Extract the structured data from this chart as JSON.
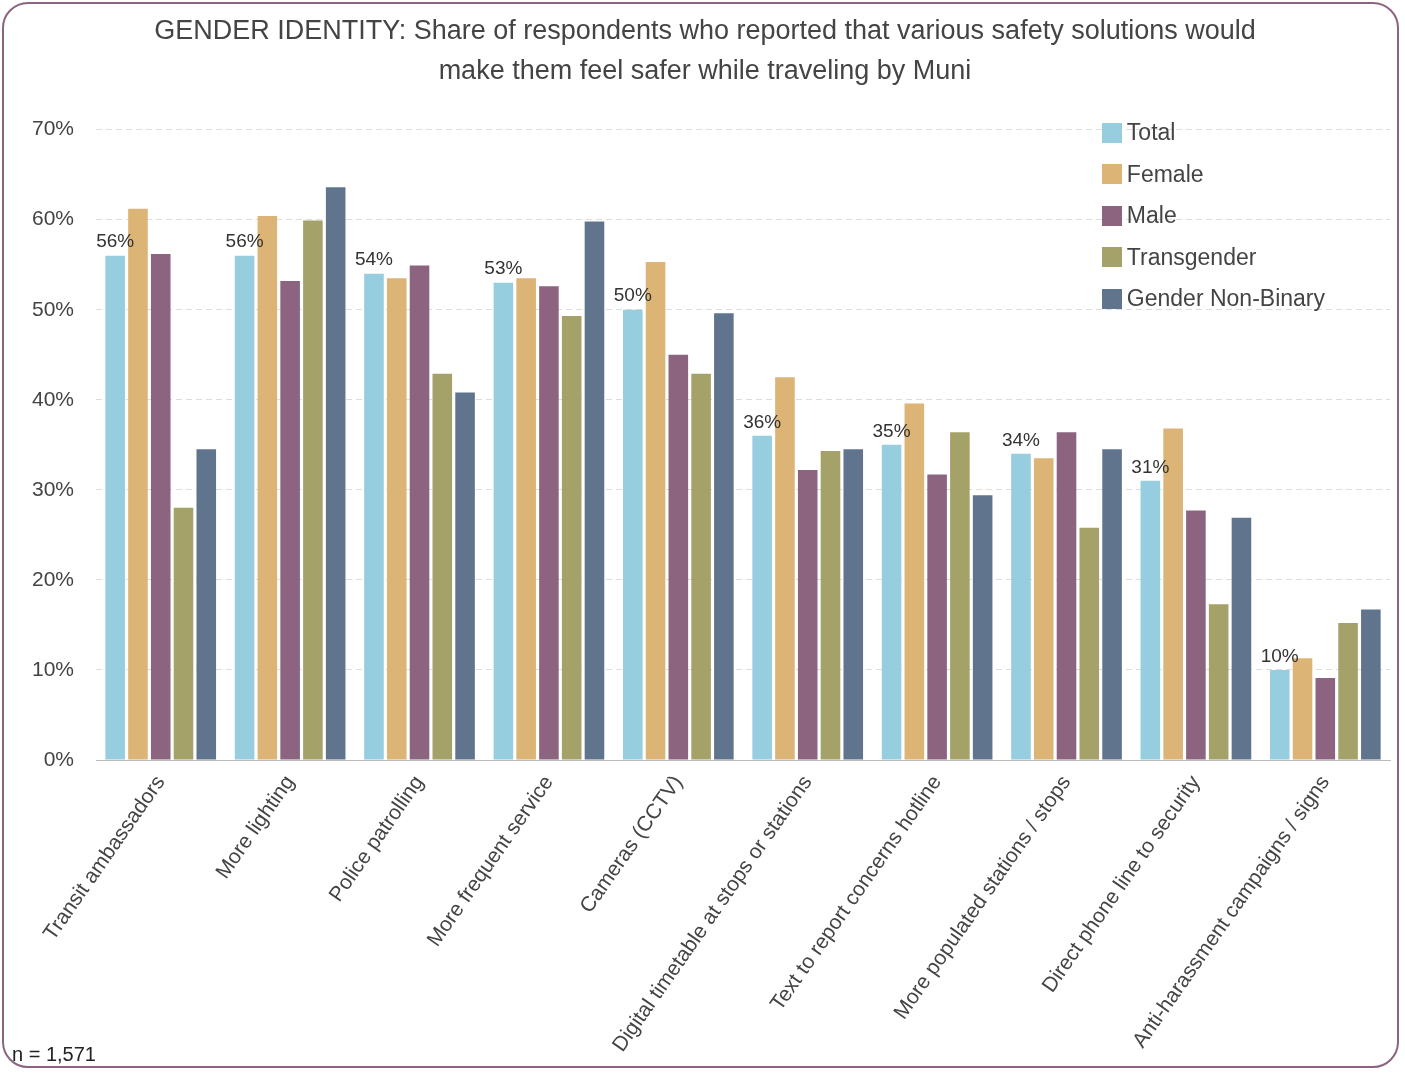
{
  "chart_data": {
    "type": "bar",
    "title": "GENDER IDENTITY: Share of respondents who reported that various safety solutions would make them feel safer while traveling by Muni",
    "categories": [
      "Transit ambassadors",
      "More lighting",
      "Police patrolling",
      "More frequent service",
      "Cameras (CCTV)",
      "Digital timetable at stops or stations",
      "Text to report concerns hotline",
      "More populated stations / stops",
      "Direct phone line to security",
      "Anti-harassment campaigns / signs"
    ],
    "series": [
      {
        "name": "Total",
        "color": "#96cddf",
        "values": [
          56,
          56,
          54,
          53,
          50,
          36,
          35,
          34,
          31,
          10
        ],
        "value_labels": [
          "56%",
          "56%",
          "54%",
          "53%",
          "50%",
          "36%",
          "35%",
          "34%",
          "31%",
          "10%"
        ]
      },
      {
        "name": "Female",
        "color": "#dbb476",
        "values": [
          61.2,
          60.4,
          53.5,
          53.5,
          55.3,
          42.5,
          39.6,
          33.5,
          36.8,
          11.3
        ]
      },
      {
        "name": "Male",
        "color": "#8c6480",
        "values": [
          56.2,
          53.2,
          54.9,
          52.6,
          45.0,
          32.2,
          31.7,
          36.4,
          27.7,
          9.1
        ]
      },
      {
        "name": "Transgender",
        "color": "#a4a269",
        "values": [
          28.0,
          59.9,
          42.9,
          49.3,
          42.9,
          34.3,
          36.4,
          25.8,
          17.3,
          15.2
        ]
      },
      {
        "name": "Gender Non-Binary",
        "color": "#60748e",
        "values": [
          34.5,
          63.6,
          40.8,
          59.8,
          49.6,
          34.5,
          29.4,
          34.5,
          26.9,
          16.7
        ]
      }
    ],
    "ylim": [
      0,
      70
    ],
    "yticks": [
      {
        "value": 0,
        "label": "0%"
      },
      {
        "value": 10,
        "label": "10%"
      },
      {
        "value": 20,
        "label": "20%"
      },
      {
        "value": 30,
        "label": "30%"
      },
      {
        "value": 40,
        "label": "40%"
      },
      {
        "value": 50,
        "label": "50%"
      },
      {
        "value": 60,
        "label": "60%"
      },
      {
        "value": 70,
        "label": "70%"
      }
    ],
    "grid": "y",
    "legend": "top right",
    "annotations": [
      "n = 1,571"
    ]
  }
}
